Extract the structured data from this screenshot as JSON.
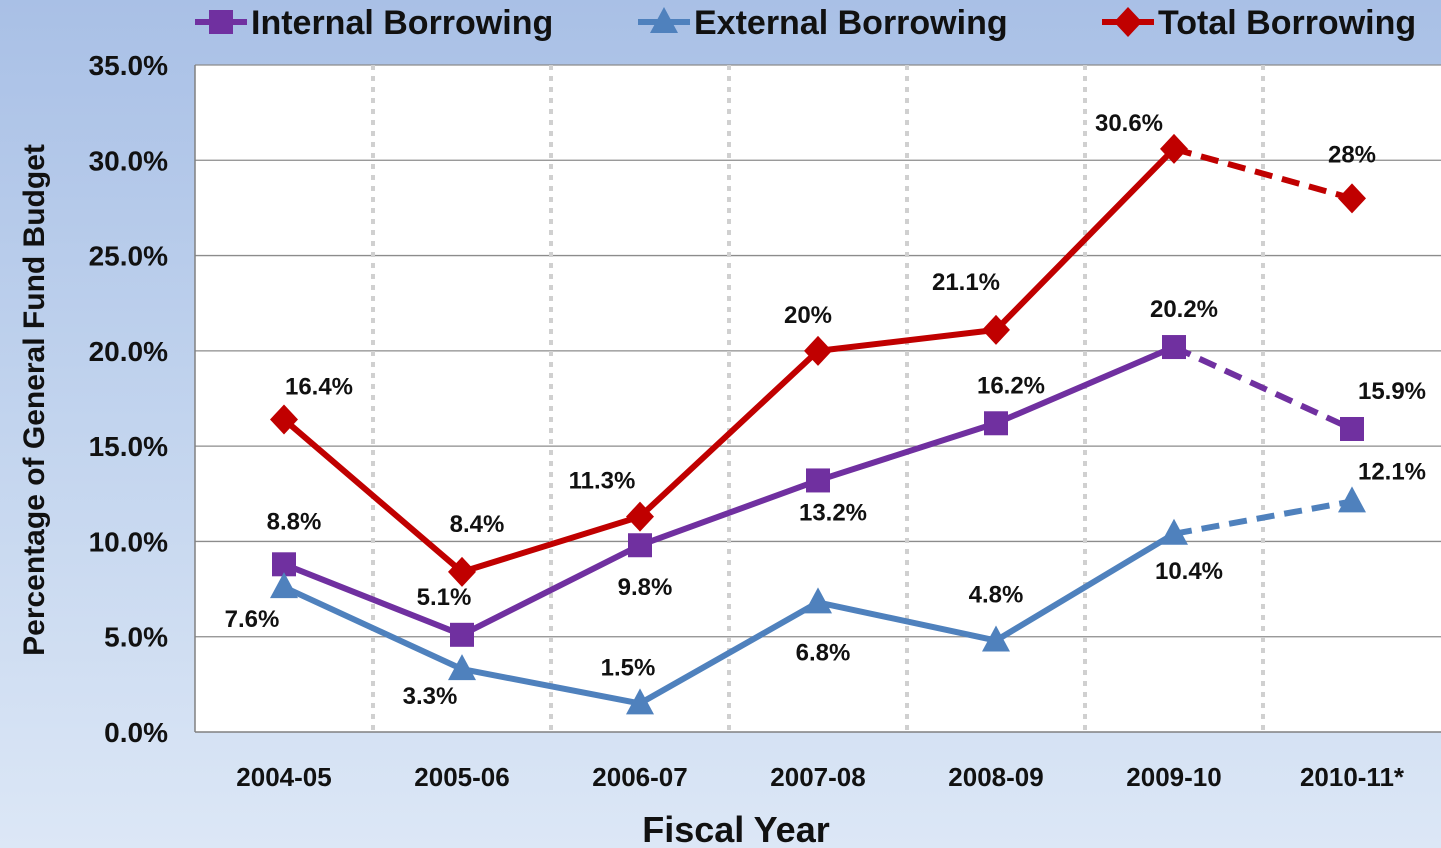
{
  "chart_data": {
    "type": "line",
    "title": "",
    "xlabel": "Fiscal Year",
    "ylabel": "Percentage of General Fund Budget",
    "categories": [
      "2004-05",
      "2005-06",
      "2006-07",
      "2007-08",
      "2008-09",
      "2009-10",
      "2010-11*"
    ],
    "ylim": [
      0,
      35
    ],
    "yticks": [
      "0.0%",
      "5.0%",
      "10.0%",
      "15.0%",
      "20.0%",
      "25.0%",
      "30.0%",
      "35.0%"
    ],
    "grid": "horizontal solid, vertical dotted",
    "legend_position": "top",
    "projected_from_index": 5,
    "series": [
      {
        "name": "Internal Borrowing",
        "color": "#7030a0",
        "marker": "square",
        "values": [
          8.8,
          5.1,
          9.8,
          13.2,
          16.2,
          20.2,
          15.9
        ],
        "labels": [
          "8.8%",
          "5.1%",
          "9.8%",
          "13.2%",
          "16.2%",
          "20.2%",
          "15.9%"
        ]
      },
      {
        "name": "External Borrowing",
        "color": "#4f81bd",
        "marker": "triangle",
        "values": [
          7.6,
          3.3,
          1.5,
          6.8,
          4.8,
          10.4,
          12.1
        ],
        "labels": [
          "7.6%",
          "3.3%",
          "1.5%",
          "6.8%",
          "4.8%",
          "10.4%",
          "12.1%"
        ]
      },
      {
        "name": "Total Borrowing",
        "color": "#c00000",
        "marker": "diamond",
        "values": [
          16.4,
          8.4,
          11.3,
          20,
          21.1,
          30.6,
          28
        ],
        "labels": [
          "16.4%",
          "8.4%",
          "11.3%",
          "20%",
          "21.1%",
          "30.6%",
          "28%"
        ]
      }
    ]
  }
}
